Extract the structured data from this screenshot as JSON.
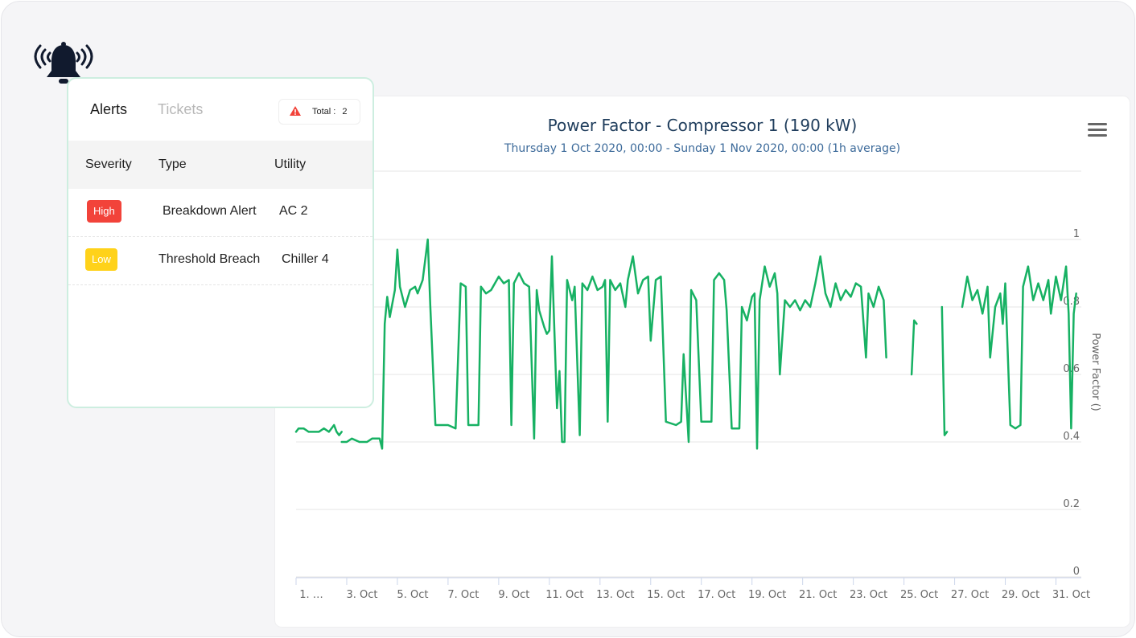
{
  "panel": {
    "tabs": {
      "alerts": "Alerts",
      "tickets": "Tickets"
    },
    "total": {
      "label": "Total :",
      "value": "2",
      "icon": "warning-triangle-icon",
      "icon_color": "#f2433a"
    },
    "columns": [
      "Severity",
      "Type",
      "Utility"
    ],
    "rows": [
      {
        "severity": "High",
        "severity_color": "#f2433a",
        "type": "Breakdown Alert",
        "utility": "AC 2"
      },
      {
        "severity": "Low",
        "severity_color": "#ffd21a",
        "type": "Threshold Breach",
        "utility": "Chiller 4"
      }
    ]
  },
  "header": {
    "bell_icon": "bell-ringing-icon"
  },
  "chart": {
    "menu_icon": "hamburger-menu-icon"
  },
  "chart_data": {
    "type": "line",
    "title": "Power Factor - Compressor 1 (190 kW)",
    "subtitle": "Thursday 1 Oct 2020, 00:00 - Sunday 1 Nov 2020, 00:00 (1h average)",
    "ylabel": "Power Factor ()",
    "ylim": [
      0,
      1
    ],
    "yticks": [
      "0",
      "0.2",
      "0.4",
      "0.6",
      "0.8",
      "1"
    ],
    "y_axis_position": "right",
    "grid": true,
    "xlim": [
      1,
      32
    ],
    "xticks": [
      {
        "x": 1,
        "label": "1. …"
      },
      {
        "x": 3,
        "label": "3. Oct"
      },
      {
        "x": 5,
        "label": "5. Oct"
      },
      {
        "x": 7,
        "label": "7. Oct"
      },
      {
        "x": 9,
        "label": "9. Oct"
      },
      {
        "x": 11,
        "label": "11. Oct"
      },
      {
        "x": 13,
        "label": "13. Oct"
      },
      {
        "x": 15,
        "label": "15. Oct"
      },
      {
        "x": 17,
        "label": "17. Oct"
      },
      {
        "x": 19,
        "label": "19. Oct"
      },
      {
        "x": 21,
        "label": "21. Oct"
      },
      {
        "x": 23,
        "label": "23. Oct"
      },
      {
        "x": 25,
        "label": "25. Oct"
      },
      {
        "x": 27,
        "label": "27. Oct"
      },
      {
        "x": 29,
        "label": "29. Oct"
      },
      {
        "x": 31,
        "label": "31. Oct"
      }
    ],
    "color": "#17b163",
    "segments": [
      [
        [
          1.0,
          0.43
        ],
        [
          1.1,
          0.44
        ],
        [
          1.3,
          0.44
        ],
        [
          1.5,
          0.43
        ],
        [
          1.7,
          0.43
        ],
        [
          1.9,
          0.43
        ],
        [
          2.1,
          0.44
        ],
        [
          2.3,
          0.43
        ],
        [
          2.5,
          0.45
        ],
        [
          2.6,
          0.43
        ],
        [
          2.7,
          0.42
        ],
        [
          2.8,
          0.43
        ]
      ],
      [
        [
          2.8,
          0.4
        ],
        [
          3.0,
          0.4
        ],
        [
          3.2,
          0.41
        ],
        [
          3.5,
          0.4
        ],
        [
          3.8,
          0.4
        ],
        [
          4.0,
          0.41
        ],
        [
          4.3,
          0.41
        ],
        [
          4.4,
          0.38
        ],
        [
          4.5,
          0.75
        ],
        [
          4.6,
          0.83
        ],
        [
          4.7,
          0.77
        ],
        [
          4.9,
          0.85
        ],
        [
          5.0,
          0.97
        ],
        [
          5.1,
          0.86
        ],
        [
          5.3,
          0.8
        ],
        [
          5.5,
          0.85
        ],
        [
          5.7,
          0.86
        ],
        [
          5.8,
          0.84
        ],
        [
          6.0,
          0.88
        ],
        [
          6.2,
          1.0
        ],
        [
          6.3,
          0.8
        ],
        [
          6.5,
          0.45
        ],
        [
          7.0,
          0.45
        ],
        [
          7.3,
          0.44
        ],
        [
          7.5,
          0.87
        ],
        [
          7.7,
          0.86
        ],
        [
          7.8,
          0.45
        ],
        [
          8.2,
          0.45
        ],
        [
          8.3,
          0.86
        ],
        [
          8.5,
          0.84
        ],
        [
          8.7,
          0.85
        ],
        [
          9.0,
          0.89
        ],
        [
          9.2,
          0.87
        ],
        [
          9.4,
          0.88
        ],
        [
          9.5,
          0.45
        ],
        [
          9.6,
          0.87
        ],
        [
          9.8,
          0.9
        ],
        [
          10.0,
          0.87
        ],
        [
          10.2,
          0.86
        ],
        [
          10.4,
          0.41
        ],
        [
          10.5,
          0.85
        ],
        [
          10.6,
          0.79
        ],
        [
          10.8,
          0.74
        ],
        [
          10.9,
          0.72
        ],
        [
          11.0,
          0.73
        ],
        [
          11.1,
          0.95
        ],
        [
          11.3,
          0.5
        ],
        [
          11.4,
          0.61
        ],
        [
          11.5,
          0.4
        ],
        [
          11.6,
          0.4
        ],
        [
          11.7,
          0.88
        ],
        [
          11.9,
          0.82
        ],
        [
          12.0,
          0.86
        ],
        [
          12.2,
          0.42
        ],
        [
          12.3,
          0.87
        ],
        [
          12.5,
          0.85
        ],
        [
          12.7,
          0.89
        ],
        [
          12.9,
          0.85
        ],
        [
          13.1,
          0.86
        ],
        [
          13.2,
          0.88
        ],
        [
          13.3,
          0.46
        ],
        [
          13.4,
          0.88
        ],
        [
          13.6,
          0.85
        ],
        [
          13.8,
          0.87
        ],
        [
          14.0,
          0.8
        ],
        [
          14.1,
          0.88
        ],
        [
          14.3,
          0.95
        ],
        [
          14.5,
          0.84
        ],
        [
          14.7,
          0.88
        ],
        [
          14.9,
          0.89
        ],
        [
          15.0,
          0.7
        ],
        [
          15.2,
          0.88
        ],
        [
          15.4,
          0.89
        ],
        [
          15.6,
          0.46
        ],
        [
          16.0,
          0.45
        ],
        [
          16.2,
          0.46
        ],
        [
          16.3,
          0.66
        ],
        [
          16.5,
          0.4
        ],
        [
          16.6,
          0.85
        ],
        [
          16.8,
          0.82
        ],
        [
          17.0,
          0.46
        ],
        [
          17.4,
          0.46
        ],
        [
          17.5,
          0.88
        ],
        [
          17.7,
          0.9
        ],
        [
          17.9,
          0.88
        ],
        [
          18.0,
          0.79
        ],
        [
          18.2,
          0.44
        ],
        [
          18.5,
          0.44
        ],
        [
          18.6,
          0.8
        ],
        [
          18.8,
          0.76
        ],
        [
          19.0,
          0.83
        ],
        [
          19.1,
          0.84
        ],
        [
          19.2,
          0.38
        ],
        [
          19.3,
          0.82
        ],
        [
          19.5,
          0.92
        ],
        [
          19.7,
          0.86
        ],
        [
          19.9,
          0.9
        ],
        [
          20.0,
          0.84
        ],
        [
          20.1,
          0.6
        ],
        [
          20.3,
          0.82
        ],
        [
          20.5,
          0.8
        ],
        [
          20.7,
          0.82
        ],
        [
          20.9,
          0.79
        ],
        [
          21.1,
          0.82
        ],
        [
          21.3,
          0.8
        ],
        [
          21.5,
          0.87
        ],
        [
          21.7,
          0.95
        ],
        [
          21.9,
          0.84
        ],
        [
          22.1,
          0.8
        ],
        [
          22.3,
          0.87
        ],
        [
          22.5,
          0.82
        ],
        [
          22.7,
          0.85
        ],
        [
          22.9,
          0.83
        ],
        [
          23.1,
          0.87
        ],
        [
          23.3,
          0.86
        ],
        [
          23.5,
          0.65
        ],
        [
          23.6,
          0.84
        ],
        [
          23.8,
          0.8
        ],
        [
          24.0,
          0.86
        ],
        [
          24.2,
          0.82
        ],
        [
          24.3,
          0.65
        ]
      ],
      [
        [
          25.3,
          0.6
        ],
        [
          25.4,
          0.76
        ],
        [
          25.5,
          0.75
        ]
      ],
      [
        [
          26.5,
          0.8
        ],
        [
          26.6,
          0.42
        ],
        [
          26.7,
          0.43
        ]
      ],
      [
        [
          27.3,
          0.8
        ],
        [
          27.5,
          0.89
        ],
        [
          27.7,
          0.82
        ],
        [
          27.9,
          0.85
        ],
        [
          28.1,
          0.78
        ],
        [
          28.3,
          0.86
        ],
        [
          28.4,
          0.65
        ],
        [
          28.6,
          0.8
        ],
        [
          28.8,
          0.84
        ],
        [
          28.9,
          0.75
        ],
        [
          29.0,
          0.87
        ],
        [
          29.2,
          0.45
        ],
        [
          29.4,
          0.44
        ],
        [
          29.6,
          0.45
        ],
        [
          29.7,
          0.86
        ],
        [
          29.9,
          0.92
        ],
        [
          30.1,
          0.82
        ],
        [
          30.3,
          0.87
        ],
        [
          30.5,
          0.82
        ],
        [
          30.7,
          0.88
        ],
        [
          30.8,
          0.78
        ],
        [
          31.0,
          0.89
        ],
        [
          31.2,
          0.82
        ],
        [
          31.4,
          0.92
        ],
        [
          31.5,
          0.78
        ],
        [
          31.6,
          0.44
        ],
        [
          31.7,
          0.78
        ],
        [
          31.8,
          0.84
        ]
      ]
    ]
  }
}
